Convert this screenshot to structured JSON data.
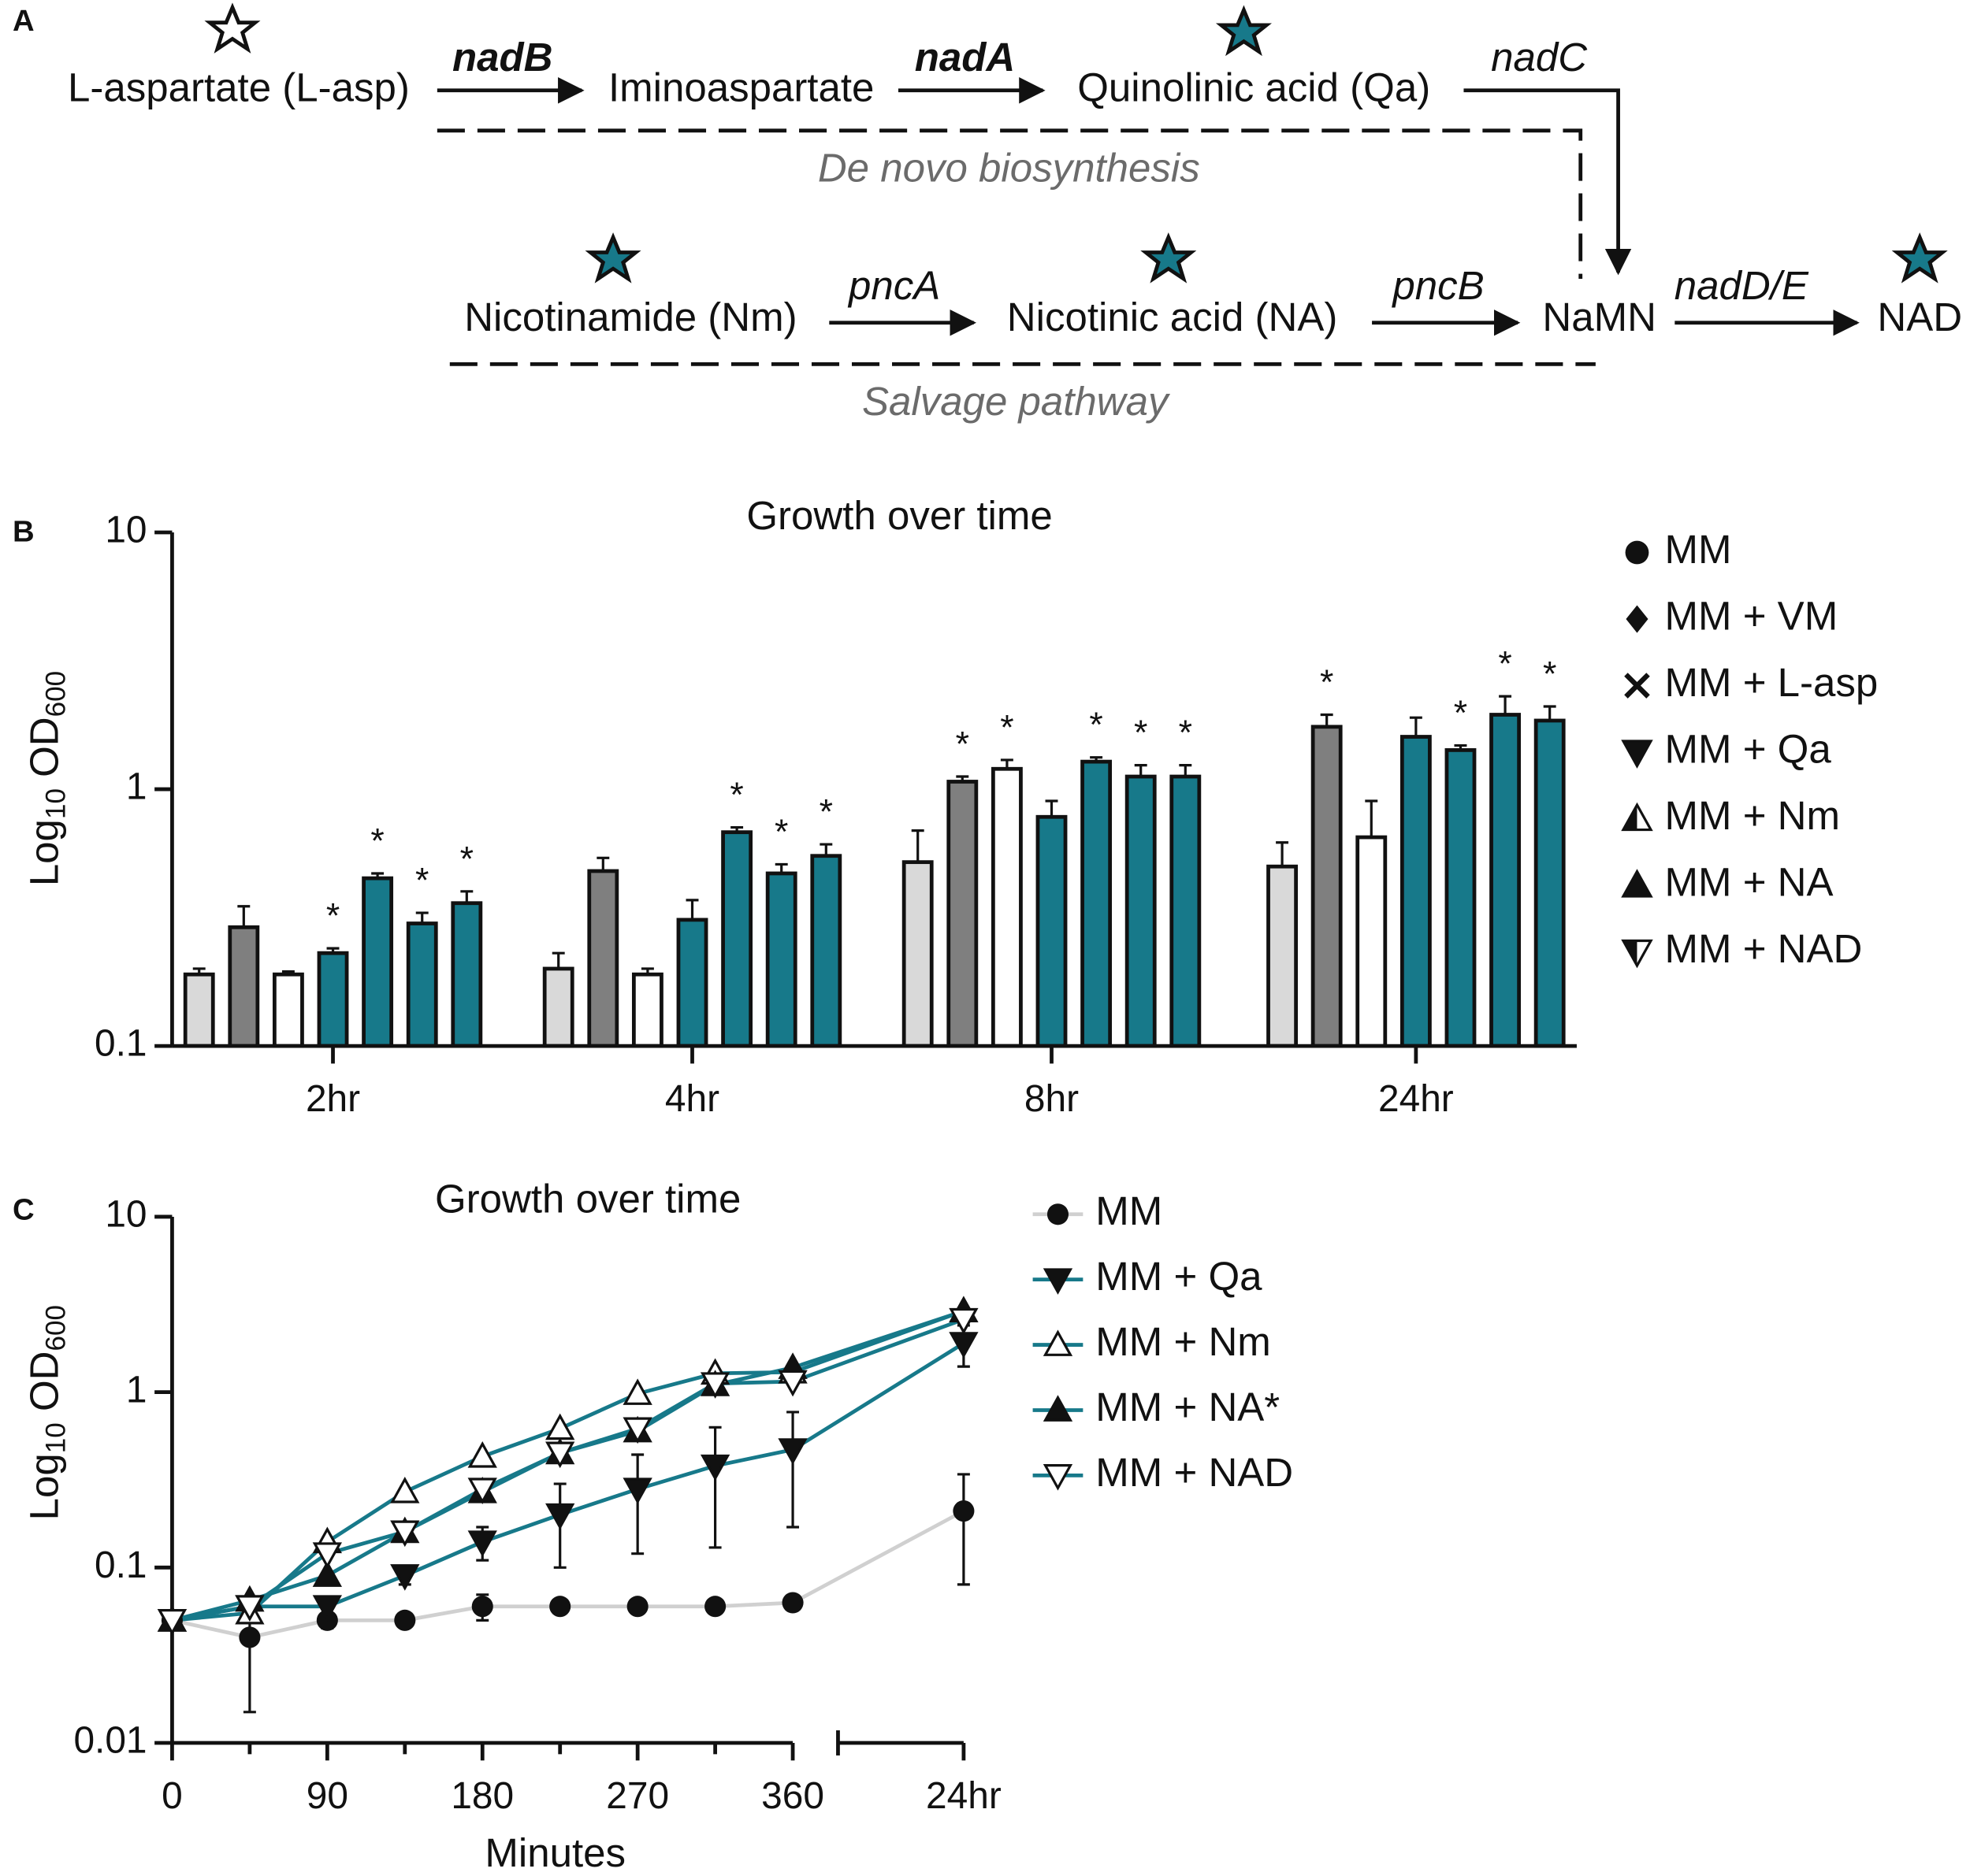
{
  "panel_labels": [
    "A",
    "B",
    "C"
  ],
  "pathway": {
    "nodes": [
      "L-aspartate (L-asp)",
      "Iminoaspartate",
      "Quinolinic acid (Qa)",
      "Nicotinamide (Nm)",
      "Nicotinic acid (NA)",
      "NaMN",
      "NAD"
    ],
    "enzymes": [
      "nadB",
      "nadA",
      "nadC",
      "pncA",
      "pncB",
      "nadD/E"
    ],
    "sections": [
      "De novo biosynthesis",
      "Salvage pathway"
    ]
  },
  "chart_data": [
    {
      "type": "bar",
      "title": "Growth over time",
      "ylabel": [
        "Log",
        "10",
        " OD",
        "600"
      ],
      "categories": [
        "2hr",
        "4hr",
        "8hr",
        "24hr"
      ],
      "log_y": true,
      "ylim": [
        0.1,
        10
      ],
      "yticks": [
        0.1,
        1,
        10
      ],
      "series": [
        {
          "name": "MM",
          "color": "#d9d9d9",
          "marker": "circle",
          "values": [
            0.19,
            0.2,
            0.52,
            0.5
          ],
          "errors": [
            0.01,
            0.03,
            0.17,
            0.12
          ],
          "significance": [
            null,
            null,
            null,
            null
          ]
        },
        {
          "name": "MM + VM",
          "color": "#7f7f7f",
          "marker": "diamond",
          "values": [
            0.29,
            0.48,
            1.07,
            1.75
          ],
          "errors": [
            0.06,
            0.06,
            0.05,
            0.2
          ],
          "significance": [
            null,
            null,
            "*",
            "*"
          ]
        },
        {
          "name": "MM + L-asp",
          "color": "#ffffff",
          "marker": "x",
          "values": [
            0.19,
            0.19,
            1.2,
            0.65
          ],
          "errors": [
            0.005,
            0.01,
            0.1,
            0.25
          ],
          "significance": [
            null,
            null,
            "*",
            null
          ]
        },
        {
          "name": "MM + Qa",
          "color": "#17798a",
          "marker": "triangle-down",
          "values": [
            0.23,
            0.31,
            0.78,
            1.6
          ],
          "errors": [
            0.01,
            0.06,
            0.12,
            0.3
          ],
          "significance": [
            "*",
            null,
            null,
            null
          ]
        },
        {
          "name": "MM + Nm",
          "color": "#17798a",
          "marker": "triangle-half",
          "values": [
            0.45,
            0.68,
            1.28,
            1.42
          ],
          "errors": [
            0.02,
            0.03,
            0.05,
            0.06
          ],
          "significance": [
            "*",
            "*",
            "*",
            "*"
          ]
        },
        {
          "name": "MM + NA",
          "color": "#17798a",
          "marker": "triangle",
          "values": [
            0.3,
            0.47,
            1.12,
            1.95
          ],
          "errors": [
            0.03,
            0.04,
            0.12,
            0.35
          ],
          "significance": [
            "*",
            "*",
            "*",
            "*"
          ]
        },
        {
          "name": "MM + NAD",
          "color": "#17798a",
          "marker": "triangle-down-half",
          "values": [
            0.36,
            0.55,
            1.12,
            1.85
          ],
          "errors": [
            0.04,
            0.06,
            0.12,
            0.25
          ],
          "significance": [
            "*",
            "*",
            "*",
            "*"
          ]
        }
      ]
    },
    {
      "type": "line",
      "title": "Growth over time",
      "xlabel": "Minutes",
      "ylabel": [
        "Log",
        "10",
        " OD",
        "600"
      ],
      "x": [
        0,
        45,
        90,
        135,
        180,
        225,
        270,
        315,
        360,
        1440
      ],
      "xbreak": [
        360,
        1440
      ],
      "xticks": [
        0,
        90,
        180,
        270,
        360,
        {
          "value": 1440,
          "label": "24hr"
        }
      ],
      "xminor": [
        45,
        135,
        225,
        315
      ],
      "log_y": true,
      "ylim": [
        0.01,
        10
      ],
      "yticks": [
        0.01,
        0.1,
        1,
        10
      ],
      "series": [
        {
          "name": "MM",
          "color": "#d0d0d0",
          "marker": "circle",
          "values": [
            0.05,
            0.04,
            0.05,
            0.05,
            0.06,
            0.06,
            0.06,
            0.06,
            0.063,
            0.21
          ],
          "errors": [
            0,
            0.025,
            0.005,
            0.003,
            0.01,
            0.005,
            0.004,
            0.004,
            0.005,
            0.13
          ]
        },
        {
          "name": "MM + Qa",
          "color": "#17798a",
          "marker": "triangle-down",
          "values": [
            0.05,
            0.06,
            0.06,
            0.09,
            0.14,
            0.2,
            0.28,
            0.38,
            0.47,
            1.9
          ],
          "errors": [
            0,
            0,
            0,
            0.01,
            0.03,
            0.1,
            0.16,
            0.25,
            0.3,
            0.5
          ]
        },
        {
          "name": "MM + Nm",
          "color": "#17798a",
          "marker": "triangle-open",
          "values": [
            0.05,
            0.055,
            0.14,
            0.27,
            0.43,
            0.62,
            0.98,
            1.28,
            1.3,
            2.9
          ]
        },
        {
          "name": "MM + NA*",
          "color": "#17798a",
          "marker": "triangle",
          "values": [
            0.05,
            0.065,
            0.09,
            0.16,
            0.27,
            0.45,
            0.6,
            1.1,
            1.38,
            2.9
          ]
        },
        {
          "name": "MM + NAD",
          "color": "#17798a",
          "marker": "triangle-down-open",
          "values": [
            0.05,
            0.06,
            0.12,
            0.16,
            0.28,
            0.45,
            0.62,
            1.12,
            1.15,
            2.6
          ]
        }
      ]
    }
  ]
}
